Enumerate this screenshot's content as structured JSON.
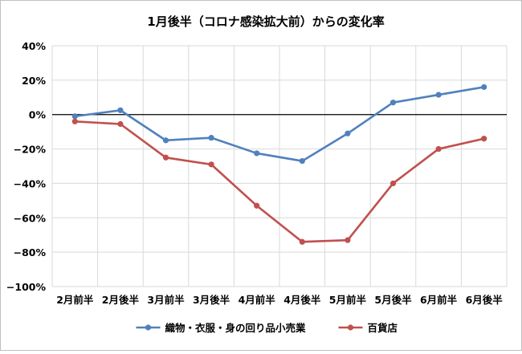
{
  "chart_data": {
    "type": "line",
    "title": "1月後半（コロナ感染拡大前）からの変化率",
    "categories": [
      "2月前半",
      "2月後半",
      "3月前半",
      "3月後半",
      "4月前半",
      "4月後半",
      "5月前半",
      "5月後半",
      "6月前半",
      "6月後半"
    ],
    "ylim": [
      -100,
      40
    ],
    "yticks": [
      40,
      20,
      0,
      -20,
      -40,
      -60,
      -80,
      -100
    ],
    "ytick_labels": [
      "40%",
      "20%",
      "0%",
      "−20%",
      "−40%",
      "−60%",
      "−80%",
      "−100%"
    ],
    "grid": true,
    "legend_position": "bottom",
    "series": [
      {
        "name": "織物・衣服・身の回り品小売業",
        "color": "#4f81bd",
        "values": [
          -1,
          2.5,
          -15,
          -13.5,
          -22.5,
          -27,
          -11,
          7,
          11.5,
          16
        ]
      },
      {
        "name": "百貨店",
        "color": "#c0504d",
        "values": [
          -4,
          -5.5,
          -25,
          -29,
          -53,
          -74,
          -73,
          -40,
          -20,
          -14
        ]
      }
    ]
  }
}
